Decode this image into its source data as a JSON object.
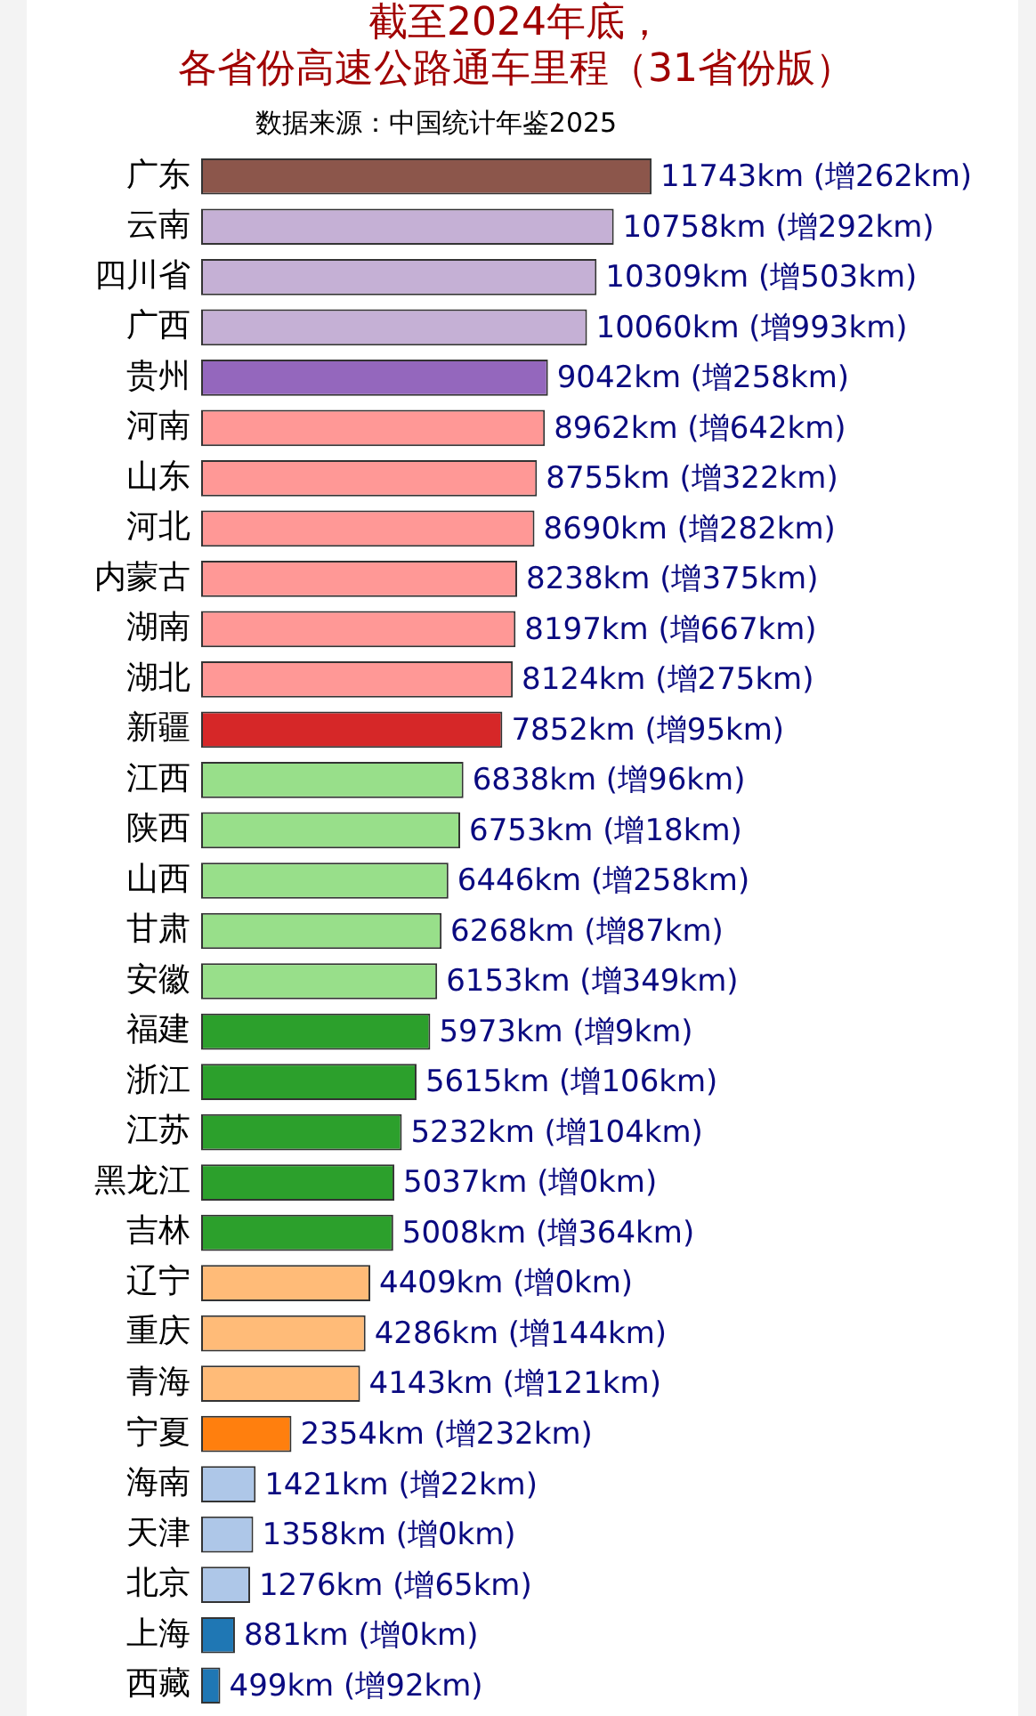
{
  "chart_data": {
    "type": "bar",
    "orientation": "horizontal",
    "title": "截至2024年底，各省份高速公路通车里程（31省份版）",
    "annotations": [
      "数据来源：中国统计年鉴2025"
    ],
    "categories": [
      "广东",
      "云南",
      "四川省",
      "广西",
      "贵州",
      "河南",
      "山东",
      "河北",
      "内蒙古",
      "湖南",
      "湖北",
      "新疆",
      "江西",
      "陕西",
      "山西",
      "甘肃",
      "安徽",
      "福建",
      "浙江",
      "江苏",
      "黑龙江",
      "吉林",
      "辽宁",
      "重庆",
      "青海",
      "宁夏",
      "海南",
      "天津",
      "北京",
      "上海",
      "西藏"
    ],
    "values": [
      11743,
      10758,
      10309,
      10060,
      9042,
      8962,
      8755,
      8690,
      8238,
      8197,
      8124,
      7852,
      6838,
      6753,
      6446,
      6268,
      6153,
      5973,
      5615,
      5232,
      5037,
      5008,
      4409,
      4286,
      4143,
      2354,
      1421,
      1358,
      1276,
      881,
      499
    ],
    "value_labels": [
      "11743km (增262km)",
      "10758km (增292km)",
      "10309km (增503km)",
      "10060km (增993km)",
      "9042km (增258km)",
      "8962km (增642km)",
      "8755km (增322km)",
      "8690km (增282km)",
      "8238km (增375km)",
      "8197km (增667km)",
      "8124km (增275km)",
      "7852km (增95km)",
      "6838km (增96km)",
      "6753km (增18km)",
      "6446km (增258km)",
      "6268km (增87km)",
      "6153km (增349km)",
      "5973km (增9km)",
      "5615km (增106km)",
      "5232km (增104km)",
      "5037km (增0km)",
      "5008km (增364km)",
      "4409km (增0km)",
      "4286km (增144km)",
      "4143km (增121km)",
      "2354km (增232km)",
      "1421km (增22km)",
      "1358km (增0km)",
      "1276km (增65km)",
      "881km (增0km)",
      "499km (增92km)"
    ],
    "colors": [
      "#8c564b",
      "#c5b0d5",
      "#c5b0d5",
      "#c5b0d5",
      "#9467bd",
      "#ff9896",
      "#ff9896",
      "#ff9896",
      "#ff9896",
      "#ff9896",
      "#ff9896",
      "#d62728",
      "#98df8a",
      "#98df8a",
      "#98df8a",
      "#98df8a",
      "#98df8a",
      "#2ca02c",
      "#2ca02c",
      "#2ca02c",
      "#2ca02c",
      "#2ca02c",
      "#ffbb78",
      "#ffbb78",
      "#ffbb78",
      "#ff7f0e",
      "#aec7e8",
      "#aec7e8",
      "#aec7e8",
      "#1f77b4",
      "#1f77b4"
    ]
  }
}
